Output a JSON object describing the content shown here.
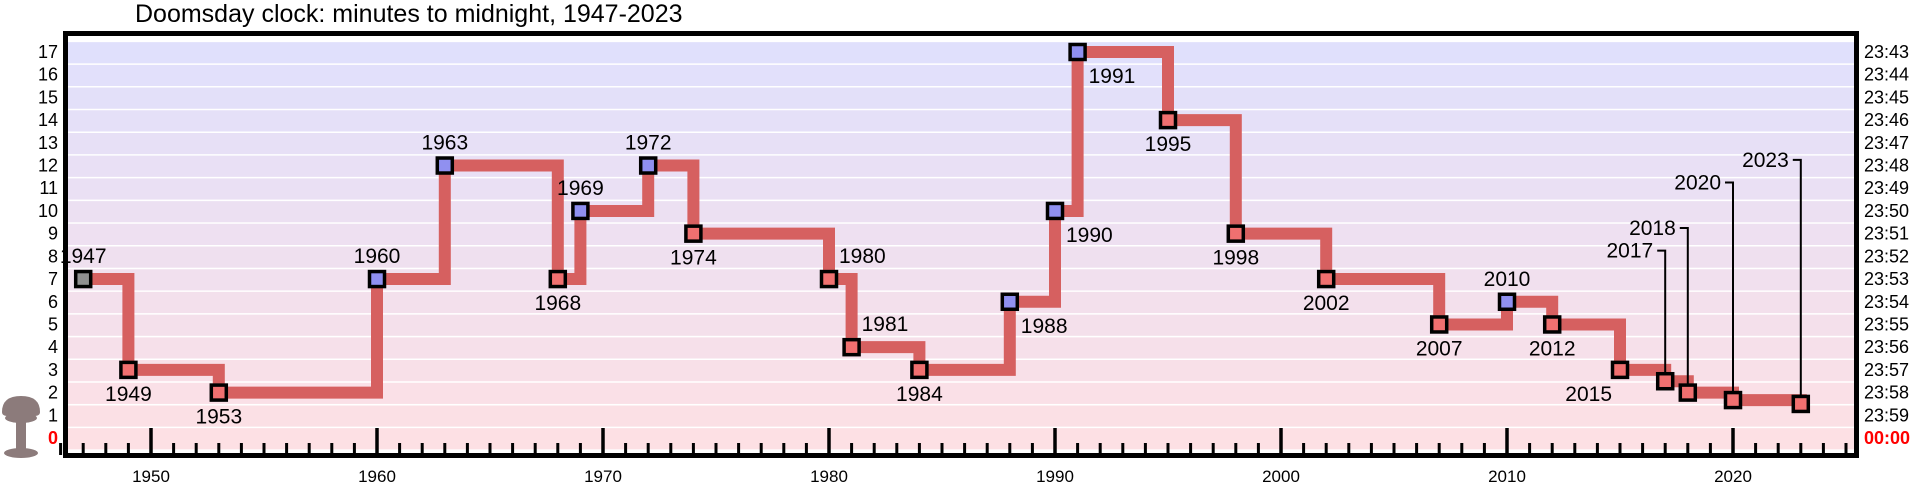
{
  "chart_data": {
    "type": "line",
    "title": "Doomsday clock: minutes to midnight, 1947-2023",
    "xlabel": "",
    "ylabel": "",
    "xlim": [
      1945.5,
      2025
    ],
    "ylim": [
      0,
      17
    ],
    "step": true,
    "x_ticks": [
      1950,
      1960,
      1970,
      1980,
      1990,
      2000,
      2010,
      2020
    ],
    "y_ticks_left": [
      "0",
      "1",
      "2",
      "3",
      "4",
      "5",
      "6",
      "7",
      "8",
      "9",
      "10",
      "11",
      "12",
      "13",
      "14",
      "15",
      "16",
      "17"
    ],
    "y_ticks_right": [
      "00:00",
      "23:59",
      "23:58",
      "23:57",
      "23:56",
      "23:55",
      "23:54",
      "23:53",
      "23:52",
      "23:51",
      "23:50",
      "23:49",
      "23:48",
      "23:47",
      "23:46",
      "23:45",
      "23:44",
      "23:43"
    ],
    "line_color": "#d66060",
    "marker_colors": {
      "initial": "#909090",
      "closer": "#f07070",
      "further": "#9090f0"
    },
    "bands": {
      "top_color": "#e0e0fc",
      "bottom_color": "#fde0e4"
    },
    "midnight_color": "#ff0000",
    "points": [
      {
        "year": 1947,
        "minutes": 7,
        "label": "1947",
        "label_pos": "above",
        "kind": "initial"
      },
      {
        "year": 1949,
        "minutes": 3,
        "label": "1949",
        "label_pos": "below",
        "kind": "closer"
      },
      {
        "year": 1953,
        "minutes": 2,
        "label": "1953",
        "label_pos": "below",
        "kind": "closer"
      },
      {
        "year": 1960,
        "minutes": 7,
        "label": "1960",
        "label_pos": "above",
        "kind": "further"
      },
      {
        "year": 1963,
        "minutes": 12,
        "label": "1963",
        "label_pos": "above",
        "kind": "further"
      },
      {
        "year": 1968,
        "minutes": 7,
        "label": "1968",
        "label_pos": "below",
        "kind": "closer"
      },
      {
        "year": 1969,
        "minutes": 10,
        "label": "1969",
        "label_pos": "above",
        "kind": "further"
      },
      {
        "year": 1972,
        "minutes": 12,
        "label": "1972",
        "label_pos": "above",
        "kind": "further"
      },
      {
        "year": 1974,
        "minutes": 9,
        "label": "1974",
        "label_pos": "below",
        "kind": "closer"
      },
      {
        "year": 1980,
        "minutes": 7,
        "label": "1980",
        "label_pos": "above-right",
        "kind": "closer"
      },
      {
        "year": 1981,
        "minutes": 4,
        "label": "1981",
        "label_pos": "above-right",
        "kind": "closer"
      },
      {
        "year": 1984,
        "minutes": 3,
        "label": "1984",
        "label_pos": "below",
        "kind": "closer"
      },
      {
        "year": 1988,
        "minutes": 6,
        "label": "1988",
        "label_pos": "below-right",
        "kind": "further"
      },
      {
        "year": 1990,
        "minutes": 10,
        "label": "1990",
        "label_pos": "below-right",
        "kind": "further"
      },
      {
        "year": 1991,
        "minutes": 17,
        "label": "1991",
        "label_pos": "below-right",
        "kind": "further"
      },
      {
        "year": 1995,
        "minutes": 14,
        "label": "1995",
        "label_pos": "below",
        "kind": "closer"
      },
      {
        "year": 1998,
        "minutes": 9,
        "label": "1998",
        "label_pos": "below",
        "kind": "closer"
      },
      {
        "year": 2002,
        "minutes": 7,
        "label": "2002",
        "label_pos": "below",
        "kind": "closer"
      },
      {
        "year": 2007,
        "minutes": 5,
        "label": "2007",
        "label_pos": "below",
        "kind": "closer"
      },
      {
        "year": 2010,
        "minutes": 6,
        "label": "2010",
        "label_pos": "above",
        "kind": "further"
      },
      {
        "year": 2012,
        "minutes": 5,
        "label": "2012",
        "label_pos": "below",
        "kind": "closer"
      },
      {
        "year": 2015,
        "minutes": 3,
        "label": "2015",
        "label_pos": "below-left",
        "kind": "closer"
      },
      {
        "year": 2017,
        "minutes": 2.5,
        "label": "2017",
        "label_pos": "leader",
        "kind": "closer"
      },
      {
        "year": 2018,
        "minutes": 2,
        "label": "2018",
        "label_pos": "leader",
        "kind": "closer"
      },
      {
        "year": 2020,
        "minutes": 1.67,
        "label": "2020",
        "label_pos": "leader",
        "kind": "closer"
      },
      {
        "year": 2023,
        "minutes": 1.5,
        "label": "2023",
        "label_pos": "leader",
        "kind": "closer"
      }
    ],
    "leader_label_minutes": {
      "2017": 8.25,
      "2018": 9.25,
      "2020": 11.25,
      "2023": 12.25
    }
  }
}
